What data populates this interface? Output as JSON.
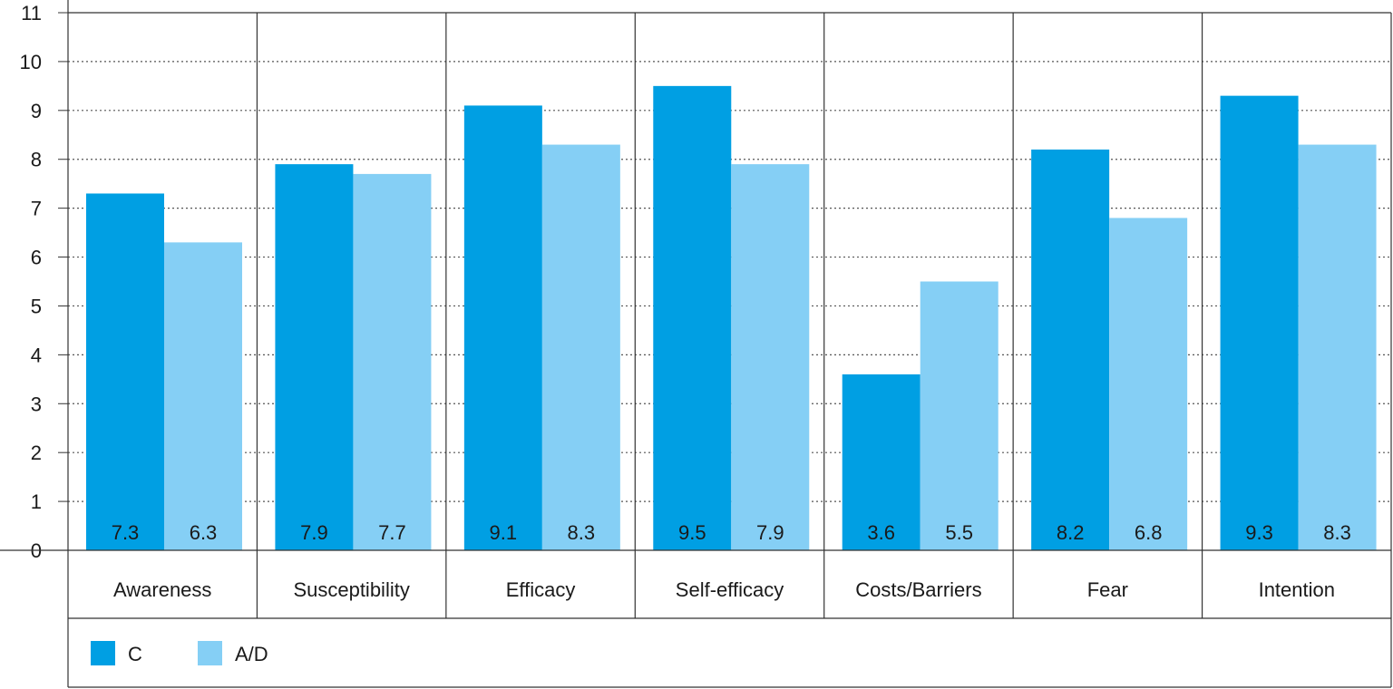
{
  "chart_data": {
    "type": "bar",
    "categories": [
      "Awareness",
      "Susceptibility",
      "Efficacy",
      "Self-efficacy",
      "Costs/Barriers",
      "Fear",
      "Intention"
    ],
    "series": [
      {
        "name": "C",
        "color": "#009fe3",
        "values": [
          7.3,
          7.9,
          9.1,
          9.5,
          3.6,
          8.2,
          9.3
        ]
      },
      {
        "name": "A/D",
        "color": "#85cff5",
        "values": [
          6.3,
          7.7,
          8.3,
          7.9,
          5.5,
          6.8,
          8.3
        ]
      }
    ],
    "value_labels": {
      "C": [
        "7.3",
        "7.9",
        "9.1",
        "9.5",
        "3.6",
        "8.2",
        "9.3"
      ],
      "A/D": [
        "6.3",
        "7.7",
        "8.3",
        "7.9",
        "5.5",
        "6.8",
        "8.3"
      ]
    },
    "y_ticks": [
      "0",
      "1",
      "2",
      "3",
      "4",
      "5",
      "6",
      "7",
      "8",
      "9",
      "10",
      "11"
    ],
    "ylim": [
      0,
      11
    ],
    "title": "",
    "xlabel": "",
    "ylabel": "",
    "grid": "horizontal-dotted",
    "legend_position": "bottom-left"
  }
}
